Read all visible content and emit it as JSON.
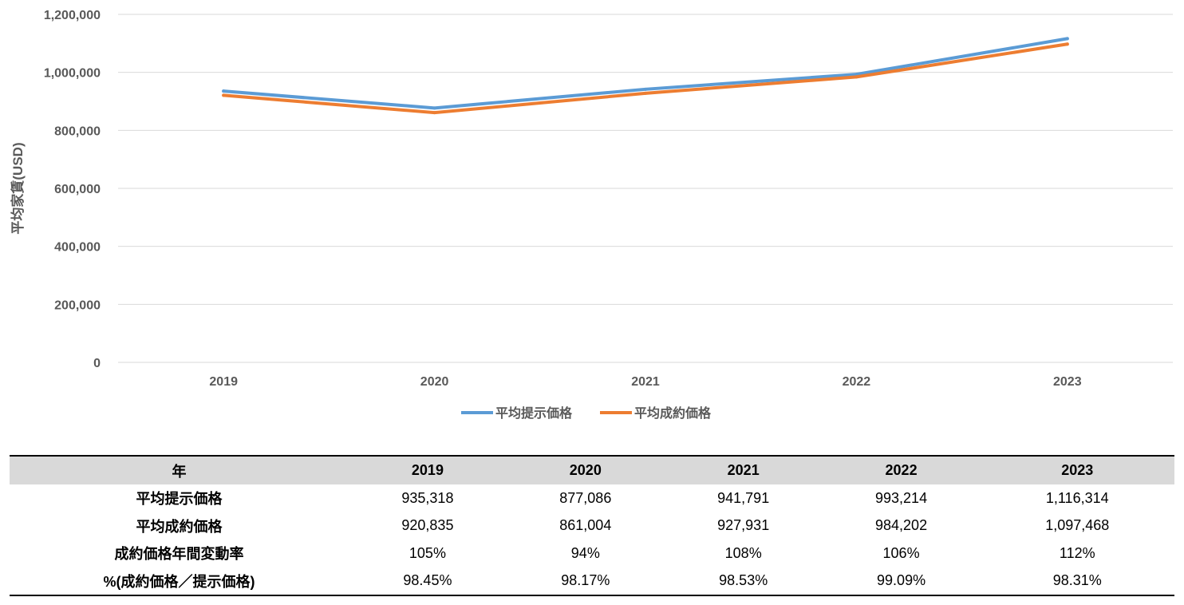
{
  "chart_data": {
    "type": "line",
    "title": "",
    "xlabel": "",
    "ylabel": "平均家賃(USD)",
    "categories": [
      "2019",
      "2020",
      "2021",
      "2022",
      "2023"
    ],
    "ylim": [
      0,
      1200000
    ],
    "yticks": [
      0,
      200000,
      400000,
      600000,
      800000,
      1000000,
      1200000
    ],
    "ytick_labels": [
      "0",
      "200,000",
      "400,000",
      "600,000",
      "800,000",
      "1,000,000",
      "1,200,000"
    ],
    "grid": true,
    "legend": "bottom",
    "series": [
      {
        "name": "平均提示価格",
        "color": "#5b9bd5",
        "values": [
          935318,
          877086,
          941791,
          993214,
          1116314
        ]
      },
      {
        "name": "平均成約価格",
        "color": "#ed7d31",
        "values": [
          920835,
          861004,
          927931,
          984202,
          1097468
        ]
      }
    ]
  },
  "table": {
    "header_label": "年",
    "years": [
      "2019",
      "2020",
      "2021",
      "2022",
      "2023"
    ],
    "rows": [
      {
        "label": "平均提示価格",
        "cells": [
          "935,318",
          "877,086",
          "941,791",
          "993,214",
          "1,116,314"
        ]
      },
      {
        "label": "平均成約価格",
        "cells": [
          "920,835",
          "861,004",
          "927,931",
          "984,202",
          "1,097,468"
        ]
      },
      {
        "label": "成約価格年間変動率",
        "cells": [
          "105%",
          "94%",
          "108%",
          "106%",
          "112%"
        ]
      },
      {
        "label": "%(成約価格／提示価格)",
        "cells": [
          "98.45%",
          "98.17%",
          "98.53%",
          "99.09%",
          "98.31%"
        ]
      }
    ]
  },
  "colors": {
    "gridline": "#d9d9d9",
    "axis_text": "#595959"
  }
}
